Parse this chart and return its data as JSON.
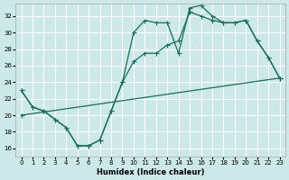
{
  "xlabel": "Humidex (Indice chaleur)",
  "background_color": "#cce8e8",
  "line_color": "#1a6b5a",
  "grid_color": "#b8d8d8",
  "xlim": [
    -0.5,
    23.5
  ],
  "ylim": [
    15.0,
    33.5
  ],
  "yticks": [
    16,
    18,
    20,
    22,
    24,
    26,
    28,
    30,
    32
  ],
  "xticks": [
    0,
    1,
    2,
    3,
    4,
    5,
    6,
    7,
    8,
    9,
    10,
    11,
    12,
    13,
    14,
    15,
    16,
    17,
    18,
    19,
    20,
    21,
    22,
    23
  ],
  "line1_x": [
    0,
    1,
    2,
    3,
    4,
    5,
    6,
    7,
    8,
    9,
    10,
    11,
    12,
    13,
    14,
    15,
    16,
    17,
    18,
    19,
    20,
    21,
    22,
    23
  ],
  "line1_y": [
    23.0,
    21.0,
    20.5,
    19.5,
    18.5,
    16.3,
    16.3,
    17.0,
    20.5,
    24.0,
    30.0,
    31.5,
    31.2,
    31.2,
    27.5,
    33.0,
    33.3,
    32.0,
    31.2,
    31.2,
    31.5,
    29.0,
    27.0,
    24.5
  ],
  "line2_x": [
    0,
    1,
    2,
    3,
    4,
    5,
    6,
    7,
    8,
    9,
    10,
    11,
    12,
    13,
    14,
    15,
    16,
    17,
    18,
    19,
    20,
    21,
    22,
    23
  ],
  "line2_y": [
    23.0,
    21.0,
    20.5,
    19.5,
    18.5,
    16.3,
    16.3,
    17.0,
    20.5,
    24.0,
    26.5,
    27.5,
    27.5,
    28.5,
    29.0,
    32.5,
    32.0,
    31.5,
    31.2,
    31.2,
    31.5,
    29.0,
    27.0,
    24.5
  ],
  "line3_x": [
    0,
    23
  ],
  "line3_y": [
    20.0,
    24.5
  ]
}
